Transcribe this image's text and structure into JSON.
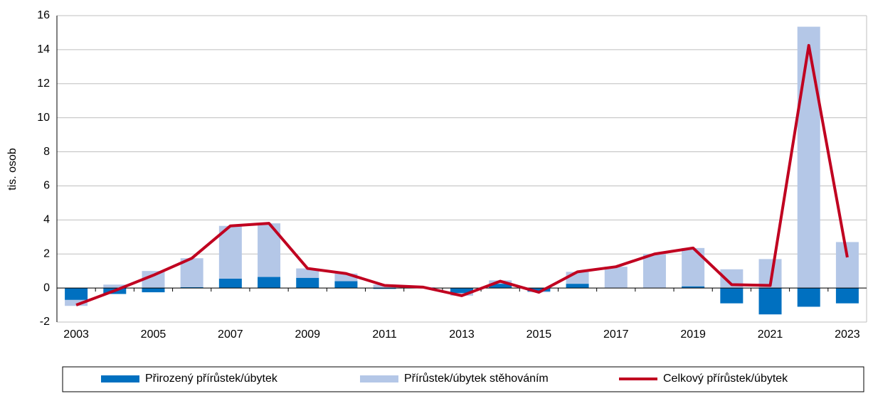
{
  "chart_data": {
    "type": "bar",
    "y_label": "tis. osob",
    "categories": [
      "2003",
      null,
      "2005",
      null,
      "2007",
      null,
      "2009",
      null,
      "2011",
      null,
      "2013",
      null,
      "2015",
      null,
      "2017",
      null,
      "2019",
      null,
      "2021",
      null,
      "2023"
    ],
    "series": [
      {
        "name": "Přirozený přírůstek/úbytek",
        "type": "bar",
        "color": "#0070c0",
        "values": [
          -0.7,
          -0.35,
          -0.25,
          0.05,
          0.55,
          0.65,
          0.6,
          0.4,
          -0.05,
          0.0,
          -0.3,
          0.25,
          -0.2,
          0.25,
          0.0,
          0.0,
          0.1,
          -0.9,
          -1.55,
          -1.1,
          -0.9
        ]
      },
      {
        "name": "Přírůstek/úbytek stěhováním",
        "type": "bar",
        "color": "#b4c7e7",
        "values": [
          -0.35,
          0.2,
          1.0,
          1.7,
          3.1,
          3.15,
          0.55,
          0.45,
          0.2,
          0.05,
          -0.15,
          0.2,
          -0.05,
          0.7,
          1.25,
          2.0,
          2.25,
          1.1,
          1.7,
          15.35,
          2.7
        ]
      },
      {
        "name": "Celkový přírůstek/úbytek",
        "type": "line",
        "color": "#c00020",
        "values": [
          -1.0,
          -0.15,
          0.75,
          1.75,
          3.65,
          3.8,
          1.15,
          0.85,
          0.15,
          0.05,
          -0.45,
          0.4,
          -0.25,
          0.95,
          1.25,
          2.0,
          2.35,
          0.2,
          0.15,
          14.25,
          1.8
        ]
      }
    ],
    "ylim": [
      -2,
      16
    ],
    "yticks": [
      -2,
      0,
      2,
      4,
      6,
      8,
      10,
      12,
      14,
      16
    ],
    "grid": true
  }
}
